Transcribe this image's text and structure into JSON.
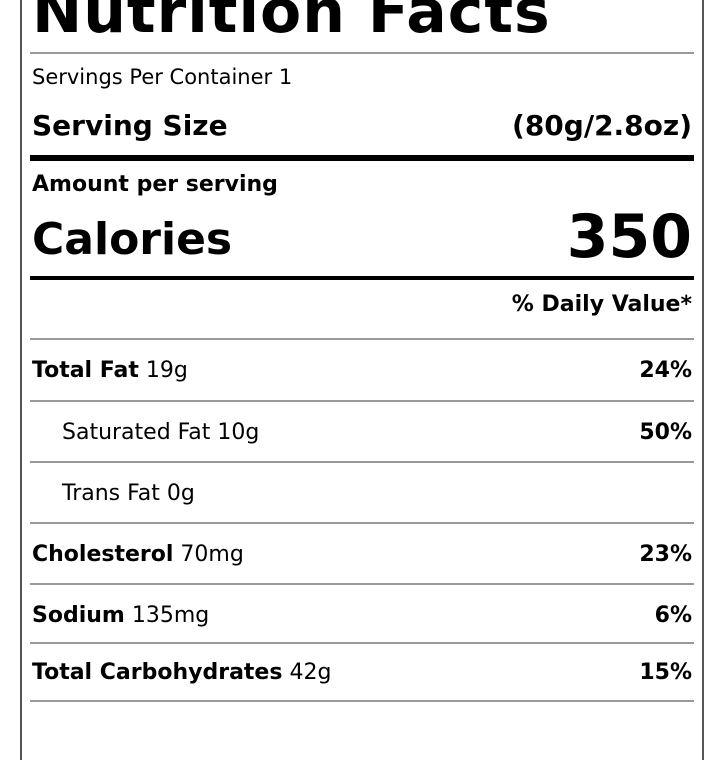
{
  "label": {
    "title": "Nutrition Facts",
    "servings_per_container": "Servings Per Container 1",
    "serving_size_label": "Serving Size",
    "serving_size_value": "(80g/2.8oz)",
    "amount_per_serving": "Amount per serving",
    "calories_label": "Calories",
    "calories_value": "350",
    "daily_value_header": "% Daily Value*",
    "nutrients": [
      {
        "name": "Total Fat",
        "amount": "19g",
        "daily_value": "24%"
      },
      {
        "name": "Saturated Fat",
        "amount": "10g",
        "daily_value": "50%"
      },
      {
        "name": "Trans Fat",
        "amount": "0g",
        "daily_value": ""
      },
      {
        "name": "Cholesterol",
        "amount": "70mg",
        "daily_value": "23%"
      },
      {
        "name": "Sodium",
        "amount": "135mg",
        "daily_value": "6%"
      },
      {
        "name": "Total Carbohydrates",
        "amount": "42g",
        "daily_value": "15%"
      }
    ]
  }
}
